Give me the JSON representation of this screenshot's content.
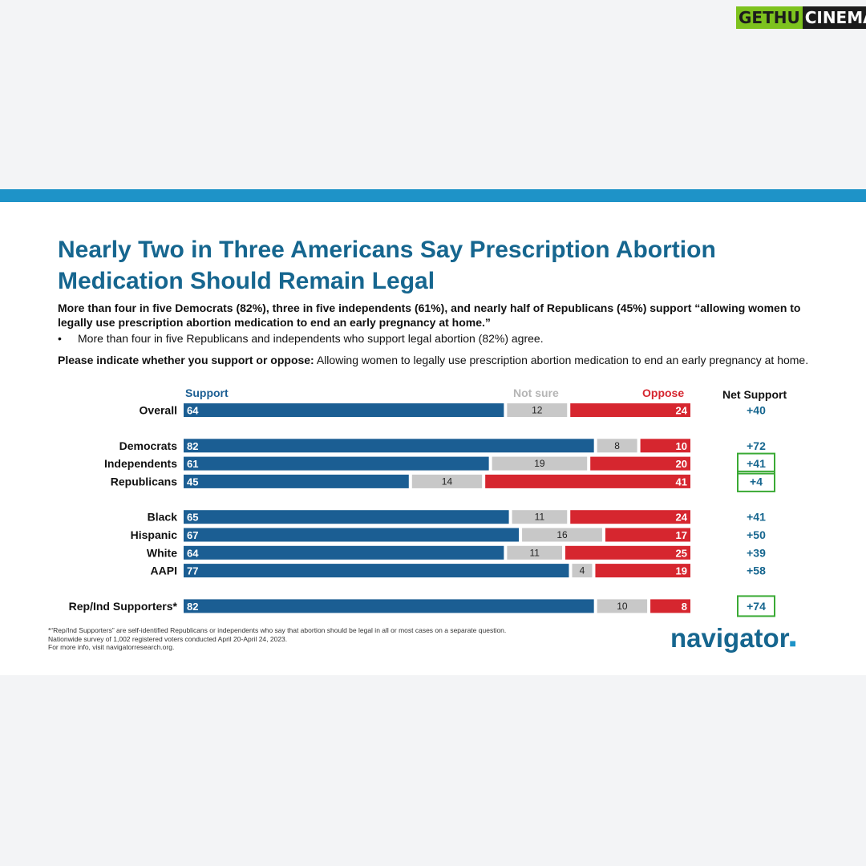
{
  "watermark": {
    "part1": "GETHU",
    "part2": "CINEMA"
  },
  "slide": {
    "title": "Nearly Two in Three Americans Say Prescription Abortion Medication Should Remain Legal",
    "subtitle": "More than four in five Democrats (82%), three in five independents (61%), and nearly half of Republicans (45%) support “allowing women to legally use prescription abortion medication to end an early pregnancy at home.”",
    "bullet": "More than four in five Republicans and independents who support legal abortion (82%) agree.",
    "question_lead": "Please indicate whether you support or oppose:",
    "question_text": "Allowing women to legally use prescription abortion medication to end an early pregnancy at home.",
    "footnotes": [
      "*“Rep/Ind Supporters” are self-identified Republicans or independents who say that abortion should be legal in all or most cases on a separate question.",
      "Nationwide survey of 1,002 registered voters conducted April 20-April 24, 2023.",
      "For more info, visit navigatorresearch.org."
    ],
    "logo": "navigator",
    "logo_mark": "■"
  },
  "chart_data": {
    "type": "bar",
    "orientation": "horizontal",
    "stacked": true,
    "legend": [
      "Support",
      "Not sure",
      "Oppose"
    ],
    "net_label": "Net Support",
    "colors": {
      "Support": "#1b5e93",
      "Not sure": "#c8c8c8",
      "Oppose": "#d6262f",
      "net_box": "#3aaa35"
    },
    "groups": [
      [
        {
          "label": "Overall",
          "support": 64,
          "not_sure": 12,
          "oppose": 24,
          "net": "+40",
          "boxed": false
        }
      ],
      [
        {
          "label": "Democrats",
          "support": 82,
          "not_sure": 8,
          "oppose": 10,
          "net": "+72",
          "boxed": false
        },
        {
          "label": "Independents",
          "support": 61,
          "not_sure": 19,
          "oppose": 20,
          "net": "+41",
          "boxed": true
        },
        {
          "label": "Republicans",
          "support": 45,
          "not_sure": 14,
          "oppose": 41,
          "net": "+4",
          "boxed": true
        }
      ],
      [
        {
          "label": "Black",
          "support": 65,
          "not_sure": 11,
          "oppose": 24,
          "net": "+41",
          "boxed": false
        },
        {
          "label": "Hispanic",
          "support": 67,
          "not_sure": 16,
          "oppose": 17,
          "net": "+50",
          "boxed": false
        },
        {
          "label": "White",
          "support": 64,
          "not_sure": 11,
          "oppose": 25,
          "net": "+39",
          "boxed": false
        },
        {
          "label": "AAPI",
          "support": 77,
          "not_sure": 4,
          "oppose": 19,
          "net": "+58",
          "boxed": false
        }
      ],
      [
        {
          "label": "Rep/Ind Supporters*",
          "support": 82,
          "not_sure": 10,
          "oppose": 8,
          "net": "+74",
          "boxed": true
        }
      ]
    ]
  }
}
